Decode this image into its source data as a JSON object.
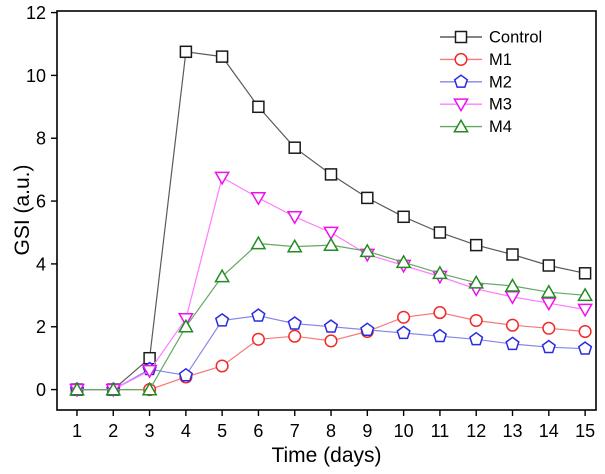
{
  "chart_data": {
    "type": "line",
    "title": "",
    "xlabel": "Time (days)",
    "ylabel": "GSI (a.u.)",
    "xlim": [
      0.45,
      15.3
    ],
    "ylim": [
      -0.65,
      12.05
    ],
    "x_ticks": [
      1,
      2,
      3,
      4,
      5,
      6,
      7,
      8,
      9,
      10,
      11,
      12,
      13,
      14,
      15
    ],
    "y_ticks": [
      0,
      2,
      4,
      6,
      8,
      10,
      12
    ],
    "grid": false,
    "legend": {
      "position": "top-right-inside",
      "border": false
    },
    "x": [
      1,
      2,
      3,
      4,
      5,
      6,
      7,
      8,
      9,
      10,
      11,
      12,
      13,
      14,
      15
    ],
    "series": [
      {
        "name": "Control",
        "marker": "square",
        "line_color": "#5a5a5a",
        "marker_color": "#1a1a1a",
        "values": [
          0,
          0,
          1.0,
          10.75,
          10.6,
          9.0,
          7.7,
          6.85,
          6.1,
          5.5,
          5.0,
          4.6,
          4.3,
          3.95,
          3.7
        ]
      },
      {
        "name": "M1",
        "marker": "circle",
        "line_color": "#f87878",
        "marker_color": "#f02a2a",
        "values": [
          0,
          0,
          0,
          0.4,
          0.75,
          1.6,
          1.7,
          1.55,
          1.85,
          2.3,
          2.45,
          2.2,
          2.05,
          1.95,
          1.85
        ]
      },
      {
        "name": "M2",
        "marker": "pentagon",
        "line_color": "#8585ea",
        "marker_color": "#2a2ae0",
        "values": [
          0,
          0,
          0.65,
          0.45,
          2.2,
          2.35,
          2.1,
          2.0,
          1.9,
          1.8,
          1.7,
          1.6,
          1.45,
          1.35,
          1.3
        ]
      },
      {
        "name": "M3",
        "marker": "triangle-down",
        "line_color": "#ff7dff",
        "marker_color": "#ee10ee",
        "values": [
          0,
          0,
          0.6,
          2.25,
          6.75,
          6.1,
          5.5,
          5.0,
          4.3,
          3.95,
          3.6,
          3.2,
          2.95,
          2.75,
          2.55
        ]
      },
      {
        "name": "M4",
        "marker": "triangle-up",
        "line_color": "#63a863",
        "marker_color": "#228b22",
        "values": [
          0,
          0,
          0,
          2.0,
          3.6,
          4.65,
          4.55,
          4.6,
          4.4,
          4.05,
          3.7,
          3.4,
          3.3,
          3.1,
          3.0
        ]
      }
    ]
  }
}
